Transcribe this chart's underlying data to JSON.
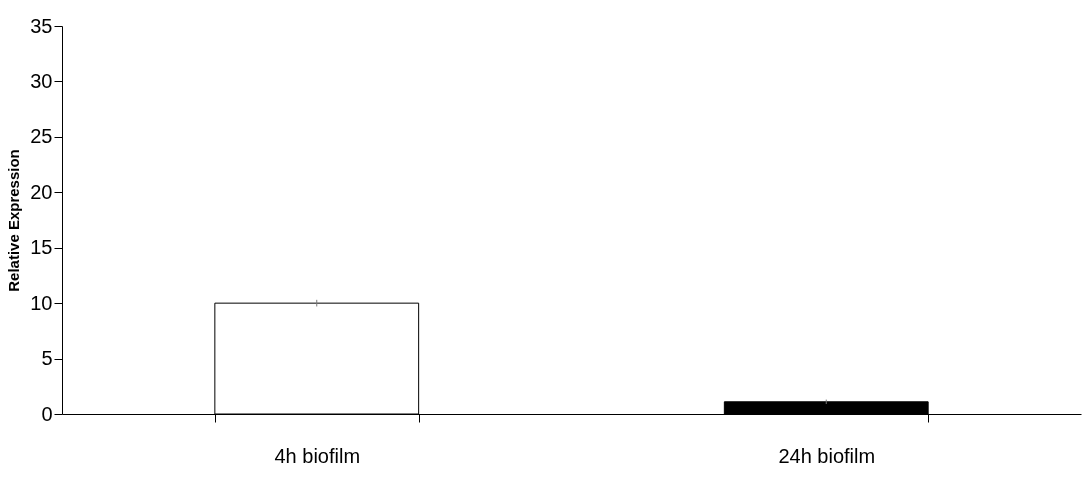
{
  "chart_data": {
    "type": "bar",
    "ylabel": "Relative Expression",
    "categories": [
      "4h biofilm",
      "24h biofilm"
    ],
    "values": [
      10,
      1.1
    ],
    "errors": [
      0.3,
      0.2
    ],
    "colors": [
      "#ffffff",
      "#000000"
    ],
    "ylim": [
      0,
      35
    ],
    "yticks": [
      0,
      5,
      10,
      15,
      20,
      25,
      30,
      35
    ],
    "grid": false
  }
}
